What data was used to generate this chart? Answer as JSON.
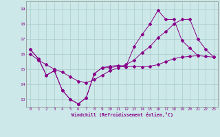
{
  "xlabel": "Windchill (Refroidissement éolien,°C)",
  "xlim": [
    -0.5,
    23.5
  ],
  "ylim": [
    12.5,
    19.5
  ],
  "yticks": [
    13,
    14,
    15,
    16,
    17,
    18,
    19
  ],
  "xtick_labels": [
    "0",
    "1",
    "2",
    "3",
    "4",
    "5",
    "6",
    "7",
    "8",
    "9",
    "10",
    "11",
    "12",
    "13",
    "14",
    "15",
    "16",
    "17",
    "18",
    "19",
    "20",
    "21",
    "22",
    "23"
  ],
  "background_color": "#cce8e8",
  "grid_color": "#aacccc",
  "line_color": "#880088",
  "series1_y": [
    16.3,
    15.7,
    14.6,
    14.9,
    13.6,
    13.0,
    12.7,
    13.1,
    14.7,
    15.1,
    15.1,
    15.2,
    15.15,
    15.2,
    15.15,
    15.2,
    15.3,
    15.5,
    15.7,
    15.8,
    15.85,
    15.9,
    15.85,
    15.8
  ],
  "series2_y": [
    16.0,
    15.6,
    15.3,
    15.0,
    14.8,
    14.5,
    14.2,
    14.1,
    14.3,
    14.6,
    14.9,
    15.1,
    15.3,
    15.6,
    16.1,
    16.5,
    17.1,
    17.5,
    18.0,
    18.3,
    18.3,
    17.0,
    16.3,
    15.8
  ],
  "series3_y": [
    16.3,
    15.7,
    14.6,
    14.9,
    13.6,
    13.0,
    12.7,
    13.1,
    14.7,
    15.1,
    15.2,
    15.25,
    15.2,
    16.5,
    17.3,
    18.0,
    18.9,
    18.3,
    18.3,
    16.9,
    16.4,
    15.9,
    null,
    null
  ]
}
